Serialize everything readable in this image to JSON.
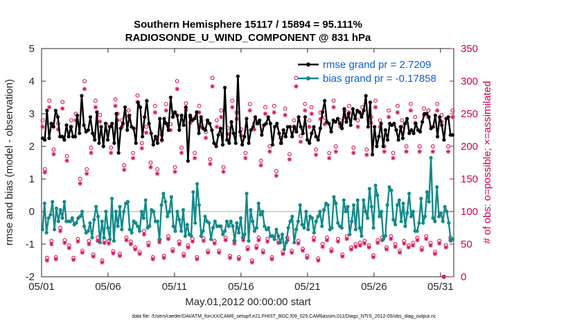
{
  "chart_data": {
    "type": "line",
    "title": "Southern Hemisphere 15117 / 15894 = 95.111%",
    "subtitle": "RADIOSONDE_U_WIND_COMPONENT @ 831 hPa",
    "xlabel": "May.01,2012 00:00:00 start",
    "ylabel": "rmse and bias (model - observation)",
    "ylabel_right": "# of obs: o=possible; ×=assimilated",
    "footer": "data file: /Users/raeder/DAI/ATM_forcXX/CAM6_setup/f.e21.FHIST_BGC.f09_025.CAM6assim.011/Diags_NTrS_2012-05/obs_diag_output.nc",
    "x_tick_labels": [
      "05/01",
      "05/06",
      "05/11",
      "05/16",
      "05/21",
      "05/26",
      "05/31"
    ],
    "x_tick_days": [
      1,
      6,
      11,
      16,
      21,
      26,
      31
    ],
    "xlim": [
      1,
      32
    ],
    "ylim": [
      -2,
      5
    ],
    "y_ticks": [
      -2,
      -1,
      0,
      1,
      2,
      3,
      4,
      5
    ],
    "ylim_right": [
      0,
      350
    ],
    "y_ticks_right": [
      0,
      50,
      100,
      150,
      200,
      250,
      300,
      350
    ],
    "zero_line": 0,
    "colors": {
      "rmse": "#000000",
      "bias": "#138a8a",
      "obs": "#d4145a",
      "legend_text": "#0b5fd0",
      "zero_line": "#bbbbbb"
    },
    "legend": [
      {
        "name": "rmse",
        "label": "rmse grand pr = 2.7209"
      },
      {
        "name": "bias",
        "label": "bias grand pr = -0.17858"
      }
    ],
    "series": [
      {
        "name": "rmse",
        "values": [
          2.25,
          2.2,
          3.1,
          2.25,
          2.7,
          2.6,
          3.1,
          2.9,
          2.3,
          2.3,
          2.2,
          2.65,
          2.3,
          2.6,
          2.3,
          2.3,
          2.95,
          2.4,
          3.55,
          2.65,
          2.45,
          2.5,
          2.9,
          2.4,
          2.2,
          3.05,
          2.1,
          2.6,
          2.0,
          2.7,
          2.2,
          2.6,
          2.7,
          2.1,
          3.0,
          1.8,
          2.55,
          2.7,
          3.2,
          2.5,
          2.95,
          2.6,
          2.55,
          2.1,
          3.35,
          3.2,
          2.3,
          2.9,
          3.4,
          2.7,
          2.4,
          2.05,
          2.3,
          2.1,
          2.85,
          2.2,
          2.85,
          2.7,
          2.5,
          3.5,
          2.9,
          3.05,
          2.95,
          2.5,
          2.95,
          2.65,
          3.2,
          1.55,
          2.95,
          2.8,
          2.85,
          3.05,
          2.4,
          2.9,
          2.55,
          2.5,
          2.8,
          2.7,
          2.5,
          2.1,
          2.0,
          2.35,
          2.55,
          2.05,
          3.8,
          2.2,
          2.1,
          2.75,
          2.4,
          2.1,
          4.15,
          2.45,
          2.05,
          2.3,
          2.85,
          2.1,
          2.5,
          2.6,
          2.9,
          2.7,
          2.8,
          2.35,
          2.65,
          2.7,
          2.9,
          2.7,
          2.05,
          2.6,
          2.7,
          2.4,
          2.1,
          2.5,
          2.3,
          2.6,
          2.6,
          2.3,
          2.6,
          2.45,
          2.9,
          2.6,
          2.4,
          2.9,
          2.2,
          2.1,
          2.4,
          2.6,
          2.3,
          2.2,
          2.55,
          3.05,
          3.4,
          2.75,
          2.7,
          2.45,
          2.8,
          2.75,
          2.85,
          2.7,
          2.55,
          3.15,
          2.75,
          3.0,
          2.65,
          3.15,
          2.85,
          3.1,
          3.05,
          2.9,
          3.1,
          3.55,
          2.6,
          3.35,
          1.75,
          2.6,
          2.0,
          2.3,
          2.7,
          2.0,
          2.5,
          2.2,
          2.7,
          2.65,
          2.7,
          2.5,
          2.2,
          2.6,
          2.25,
          2.7,
          2.85,
          2.4,
          2.5,
          2.4,
          2.7,
          2.5,
          2.45,
          2.75,
          3.0,
          3.0,
          2.9,
          2.55,
          2.6,
          2.95,
          2.3,
          2.9,
          2.65,
          2.2,
          2.85,
          2.9,
          2.35,
          2.35
        ]
      },
      {
        "name": "bias",
        "values": [
          -0.55,
          0.25,
          -0.65,
          -0.2,
          -0.1,
          0.3,
          -0.55,
          0.1,
          -0.3,
          0.05,
          -0.2,
          0.3,
          -0.3,
          -0.3,
          -0.3,
          -0.2,
          -0.4,
          -0.35,
          -0.2,
          -0.15,
          0.0,
          -0.45,
          -0.65,
          -0.6,
          -0.35,
          -0.8,
          -0.25,
          0.15,
          -0.15,
          -0.95,
          -0.3,
          -0.8,
          0.0,
          -0.5,
          -0.85,
          0.4,
          -0.9,
          0.0,
          -0.45,
          0.15,
          -0.55,
          0.0,
          0.25,
          0.3,
          -0.55,
          -0.65,
          -0.3,
          -0.35,
          -0.45,
          -0.6,
          0.0,
          -0.2,
          0.35,
          -0.5,
          -0.45,
          0.05,
          0.0,
          -0.3,
          -0.3,
          -0.85,
          0.2,
          0.55,
          0.3,
          -0.15,
          0.0,
          0.45,
          -0.45,
          -0.6,
          0.0,
          -0.25,
          -0.6,
          0.05,
          -0.75,
          -0.4,
          -0.7,
          -0.75,
          0.6,
          -0.35,
          0.85,
          0.2,
          -0.75,
          -0.6,
          -0.15,
          -0.3,
          -0.35,
          -0.85,
          -0.5,
          -0.3,
          -0.45,
          -0.45,
          -0.45,
          -0.7,
          -0.6,
          -0.3,
          -0.45,
          -0.3,
          -0.45,
          -0.9,
          -0.35,
          -0.65,
          -0.2,
          -0.8,
          -0.7,
          0.55,
          -0.9,
          0.05,
          -0.3,
          -0.6,
          -0.5,
          0.25,
          -0.1,
          0.0,
          -0.45,
          -0.55,
          -0.5,
          -0.75,
          -0.75,
          -0.85,
          -0.55,
          -0.75,
          -0.95,
          -0.7,
          -1.15,
          -0.95,
          -0.5,
          -0.3,
          -0.15,
          -0.95,
          -0.55,
          -0.3,
          0.2,
          -0.4,
          -0.5,
          0.0,
          -0.55,
          -0.15,
          -0.2,
          -0.65,
          -0.3,
          -0.15,
          0.0,
          -0.45,
          0.05,
          0.25,
          0.2,
          -0.55,
          -0.5,
          0.45,
          0.25,
          -0.35,
          -0.45,
          -0.5,
          0.35,
          0.0,
          0.15,
          -0.7,
          -0.3,
          0.2,
          -0.55,
          0.35,
          -0.5,
          -0.75,
          0.35,
          0.0,
          -0.2,
          0.7,
          0.15,
          -0.5,
          0.8,
          0.5,
          -0.15,
          0.0,
          -0.85,
          -0.75,
          0.2,
          0.75,
          0.65,
          -0.25,
          -0.4,
          0.2,
          0.35,
          -0.3,
          0.25,
          -0.45,
          -0.05,
          0.55,
          -0.15,
          0.0,
          -0.6,
          -0.6,
          -0.35,
          0.4,
          -0.35,
          -0.15,
          0.6,
          0.3,
          1.65,
          -0.2,
          -0.3,
          0.75,
          -0.15,
          -0.05,
          -0.3,
          0.15,
          0.0,
          -0.35,
          -0.9,
          -0.85
        ]
      },
      {
        "name": "obs_possible",
        "values": [
          240,
          165,
          29,
          270,
          55,
          195,
          30,
          235,
          75,
          268,
          56,
          185,
          48,
          240,
          29,
          250,
          58,
          150,
          40,
          300,
          165,
          55,
          198,
          34,
          270,
          60,
          248,
          25,
          56,
          233,
          55,
          198,
          39,
          272,
          250,
          35,
          240,
          171,
          60,
          255,
          54,
          190,
          45,
          278,
          38,
          205,
          70,
          230,
          52,
          175,
          30,
          262,
          165,
          57,
          218,
          32,
          265,
          62,
          234,
          42,
          168,
          300,
          54,
          198,
          35,
          266,
          48,
          245,
          58,
          190,
          30,
          262,
          240,
          59,
          222,
          40,
          180,
          305,
          55,
          240,
          40,
          255,
          168,
          60,
          228,
          32,
          270,
          55,
          252,
          30,
          226,
          60,
          190,
          45,
          265,
          25,
          235,
          47,
          60,
          178,
          40,
          260,
          58,
          200,
          30,
          262,
          162,
          56,
          213,
          38,
          258,
          60,
          188,
          40,
          240,
          305,
          55,
          216,
          43,
          265,
          32,
          240,
          260,
          60,
          195,
          28,
          252,
          50,
          244,
          60,
          190,
          42,
          270,
          200,
          58,
          240,
          34,
          255,
          62,
          262,
          45,
          198,
          50,
          240,
          52,
          260,
          55,
          195,
          48,
          245,
          33,
          270,
          56,
          240,
          60,
          200,
          45,
          255,
          62,
          190,
          50,
          262,
          40,
          240,
          55,
          200,
          48,
          265,
          52,
          245,
          60,
          200,
          44,
          258,
          62,
          255,
          52,
          200,
          38,
          265,
          55,
          248,
          0,
          48,
          200,
          60,
          255
        ]
      },
      {
        "name": "obs_assimilated",
        "values": [
          230,
          160,
          25,
          260,
          50,
          188,
          27,
          226,
          70,
          258,
          52,
          178,
          44,
          230,
          26,
          240,
          54,
          143,
          37,
          288,
          158,
          50,
          190,
          31,
          260,
          55,
          238,
          22,
          52,
          224,
          51,
          190,
          36,
          262,
          240,
          32,
          230,
          164,
          56,
          246,
          50,
          182,
          42,
          268,
          35,
          197,
          65,
          221,
          48,
          168,
          27,
          252,
          158,
          53,
          209,
          29,
          255,
          58,
          225,
          39,
          161,
          288,
          50,
          190,
          32,
          256,
          45,
          236,
          54,
          182,
          27,
          252,
          230,
          55,
          213,
          37,
          173,
          292,
          51,
          230,
          37,
          245,
          161,
          56,
          219,
          29,
          260,
          51,
          242,
          27,
          217,
          56,
          182,
          42,
          255,
          22,
          226,
          44,
          56,
          171,
          37,
          250,
          54,
          192,
          27,
          252,
          155,
          52,
          205,
          35,
          248,
          56,
          180,
          37,
          230,
          292,
          51,
          207,
          40,
          255,
          29,
          230,
          250,
          56,
          187,
          25,
          242,
          46,
          234,
          56,
          182,
          39,
          260,
          192,
          54,
          230,
          31,
          245,
          58,
          252,
          42,
          190,
          46,
          230,
          48,
          250,
          51,
          187,
          45,
          236,
          30,
          260,
          52,
          230,
          56,
          192,
          42,
          245,
          58,
          182,
          46,
          252,
          37,
          230,
          51,
          192,
          45,
          255,
          48,
          236,
          56,
          192,
          41,
          248,
          58,
          245,
          48,
          192,
          35,
          255,
          51,
          238,
          0,
          45,
          192,
          56,
          245
        ]
      }
    ]
  }
}
